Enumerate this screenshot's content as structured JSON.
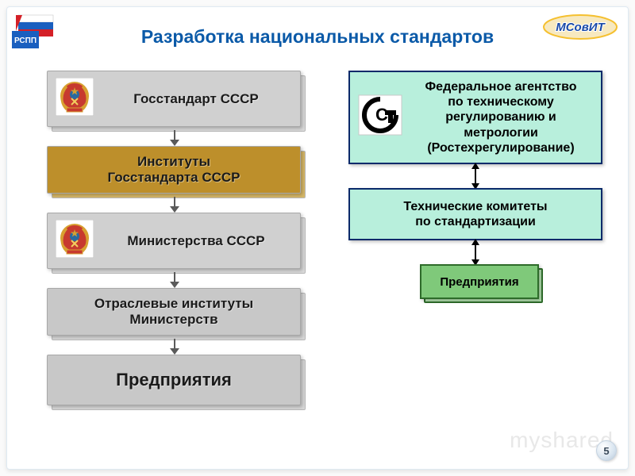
{
  "slide": {
    "title": "Разработка национальных стандартов",
    "title_color": "#0b5aa8",
    "background": "#ffffff",
    "page_number": "5",
    "watermark": "myshared"
  },
  "logos": {
    "left_label": "РСПП",
    "left_colors": {
      "blue": "#1a5fbf",
      "red": "#d42027",
      "white": "#ffffff"
    },
    "right_label": "МСовИТ",
    "right_text_fill": "#1a4aa8",
    "right_text_stroke": "#ffffff",
    "right_ring_outer": "#f5c030",
    "right_ring_inner": "#f7e9c0"
  },
  "left_column": {
    "arrow_color": "#5a5a5a",
    "boxes": [
      {
        "id": "gosstandart",
        "label": "Госстандарт СССР",
        "bg": "#d0d0d0",
        "shadow_bg": "#dadada",
        "text": "#1a1a1a",
        "emblem": true
      },
      {
        "id": "institutes",
        "label": "Институты\nГосстандарта СССР",
        "bg": "#bd8f2b",
        "shadow_bg": "#d7b868",
        "text": "#1a1a1a",
        "emblem": false
      },
      {
        "id": "ministries",
        "label": "Министерства СССР",
        "bg": "#d0d0d0",
        "shadow_bg": "#dadada",
        "text": "#1a1a1a",
        "emblem": true
      },
      {
        "id": "branch_inst",
        "label": "Отраслевые институты\nМинистерств",
        "bg": "#c8c8c8",
        "shadow_bg": "#d8d8d8",
        "text": "#1a1a1a",
        "emblem": false
      },
      {
        "id": "enterprises",
        "label": "Предприятия",
        "bg": "#c8c8c8",
        "shadow_bg": "#d8d8d8",
        "text": "#1a1a1a",
        "emblem": false,
        "big": true
      }
    ]
  },
  "right_column": {
    "arrow_color": "#000000",
    "box1": {
      "label": "Федеральное агентство\nпо техническому\nрегулированию и\nметрологии\n(Ростехрегулирование)",
      "bg": "#b8efdc",
      "border": "#0a2a6a",
      "text": "#000000",
      "logo_colors": {
        "bg": "#ffffff",
        "stroke": "#000000"
      },
      "height": 118
    },
    "box2": {
      "label": "Технические комитеты\nпо стандартизации",
      "bg": "#b8efdc",
      "border": "#0a2a6a",
      "text": "#000000",
      "height": 66
    },
    "box3": {
      "label": "Предприятия",
      "bg": "#7fc97a",
      "border": "#2e6b2a",
      "shadow_bg": "#b4e2b0",
      "text": "#000000"
    },
    "gap1": 22,
    "gap2": 22
  }
}
